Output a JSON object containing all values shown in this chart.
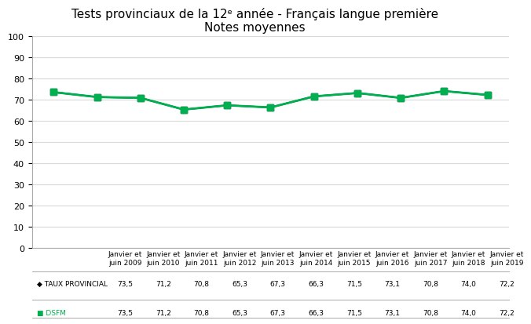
{
  "title_line1": "Tests provinciaux de la 12ᵉ année - Français langue première",
  "title_line2": "Notes moyennes",
  "categories": [
    "Janvier et\njuin 2009",
    "Janvier et\njuin 2010",
    "Janvier et\njuin 2011",
    "Janvier et\njuin 2012",
    "Janvier et\njuin 2013",
    "Janvier et\njuin 2014",
    "Janvier et\njuin 2015",
    "Janvier et\njuin 2016",
    "Janvier et\njuin 2017",
    "Janvier et\njuin 2018",
    "Janvier et\njuin 2019"
  ],
  "taux_provincial": [
    73.5,
    71.2,
    70.8,
    65.3,
    67.3,
    66.3,
    71.5,
    73.1,
    70.8,
    74.0,
    72.2
  ],
  "dsfm": [
    73.5,
    71.2,
    70.8,
    65.3,
    67.3,
    66.3,
    71.5,
    73.1,
    70.8,
    74.0,
    72.2
  ],
  "taux_color": "#000000",
  "dsfm_color": "#00b050",
  "ylim": [
    0,
    100
  ],
  "yticks": [
    0,
    10,
    20,
    30,
    40,
    50,
    60,
    70,
    80,
    90,
    100
  ],
  "grid_color": "#d9d9d9",
  "bg_color": "#ffffff",
  "title_fontsize": 11,
  "legend_label_taux": "TAUX PROVINCIAL",
  "legend_label_dsfm": "DSFM",
  "table_values_taux": [
    "73,5",
    "71,2",
    "70,8",
    "65,3",
    "67,3",
    "66,3",
    "71,5",
    "73,1",
    "70,8",
    "74,0",
    "72,2"
  ],
  "table_values_dsfm": [
    "73,5",
    "71,2",
    "70,8",
    "65,3",
    "67,3",
    "66,3",
    "71,5",
    "73,1",
    "70,8",
    "74,0",
    "72,2"
  ]
}
